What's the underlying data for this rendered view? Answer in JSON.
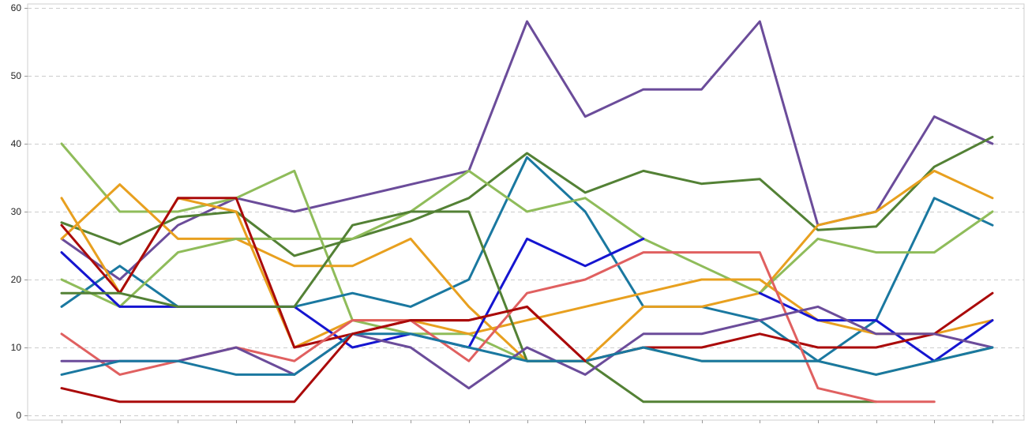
{
  "chart_data": {
    "type": "line",
    "title": "",
    "xlabel": "",
    "ylabel": "",
    "ylim": [
      0,
      60
    ],
    "yticks": [
      0,
      10,
      20,
      30,
      40,
      50,
      60
    ],
    "grid": "horizontal-dashed",
    "legend": "none",
    "x_count": 17,
    "series": [
      {
        "color": "#6b4c9a",
        "values": [
          26,
          20,
          28,
          32,
          30,
          32,
          34,
          36,
          58,
          44,
          48,
          48,
          58,
          28,
          30,
          44,
          40
        ]
      },
      {
        "color": "#538135",
        "values": [
          28.4,
          25.2,
          29.2,
          30,
          23.5,
          26,
          28.6,
          32,
          38.6,
          32.8,
          36,
          34.1,
          34.8,
          27.3,
          27.8,
          36.6,
          41
        ]
      },
      {
        "color": "#8fbc5a",
        "values": [
          40,
          30,
          30,
          32,
          36,
          14,
          12,
          12,
          8,
          8,
          10,
          8,
          8,
          8,
          6,
          8,
          10
        ]
      },
      {
        "color": "#1a78a0",
        "values": [
          16,
          22,
          16,
          16,
          16,
          18,
          16,
          20,
          38,
          30,
          16,
          16,
          14,
          8,
          14,
          32,
          28
        ]
      },
      {
        "color": "#e8a01f",
        "values": [
          26,
          34,
          26,
          26,
          22,
          22,
          26,
          16,
          8,
          8,
          16,
          16,
          18,
          28,
          30,
          36,
          32
        ]
      },
      {
        "color": "#8fbc5a",
        "values": [
          20,
          16,
          24,
          26,
          26,
          26,
          30,
          36,
          30,
          32,
          26,
          22,
          18,
          26,
          24,
          24,
          30
        ]
      },
      {
        "color": "#e8a01f",
        "values": [
          32,
          18,
          32,
          30,
          10,
          14,
          14,
          12,
          14,
          16,
          18,
          20,
          20,
          14,
          12,
          12,
          14
        ]
      },
      {
        "color": "#1515d0",
        "values": [
          24,
          16,
          16,
          16,
          16,
          10,
          12,
          10,
          26,
          22,
          26,
          null,
          18,
          14,
          14,
          8,
          14
        ]
      },
      {
        "color": "#aa0a0a",
        "values": [
          28,
          18,
          32,
          32,
          10,
          12,
          14,
          14,
          16,
          8,
          10,
          10,
          12,
          10,
          10,
          12,
          18
        ]
      },
      {
        "color": "#538135",
        "values": [
          18,
          18,
          16,
          16,
          16,
          28,
          30,
          30,
          8,
          8,
          2,
          2,
          2,
          2,
          2,
          null,
          null
        ]
      },
      {
        "color": "#e06060",
        "values": [
          12,
          6,
          8,
          10,
          8,
          14,
          14,
          8,
          18,
          20,
          24,
          24,
          24,
          4,
          2,
          2,
          null
        ]
      },
      {
        "color": "#6b4c9a",
        "values": [
          8,
          8,
          8,
          10,
          6,
          12,
          10,
          4,
          10,
          6,
          12,
          12,
          14,
          16,
          12,
          12,
          10
        ]
      },
      {
        "color": "#1a78a0",
        "values": [
          6,
          8,
          8,
          6,
          6,
          12,
          12,
          10,
          8,
          8,
          10,
          8,
          8,
          8,
          6,
          8,
          10
        ]
      },
      {
        "color": "#aa0a0a",
        "values": [
          4,
          2,
          2,
          2,
          2,
          12,
          14,
          14,
          16,
          8,
          null,
          null,
          null,
          null,
          null,
          null,
          null
        ]
      }
    ]
  }
}
